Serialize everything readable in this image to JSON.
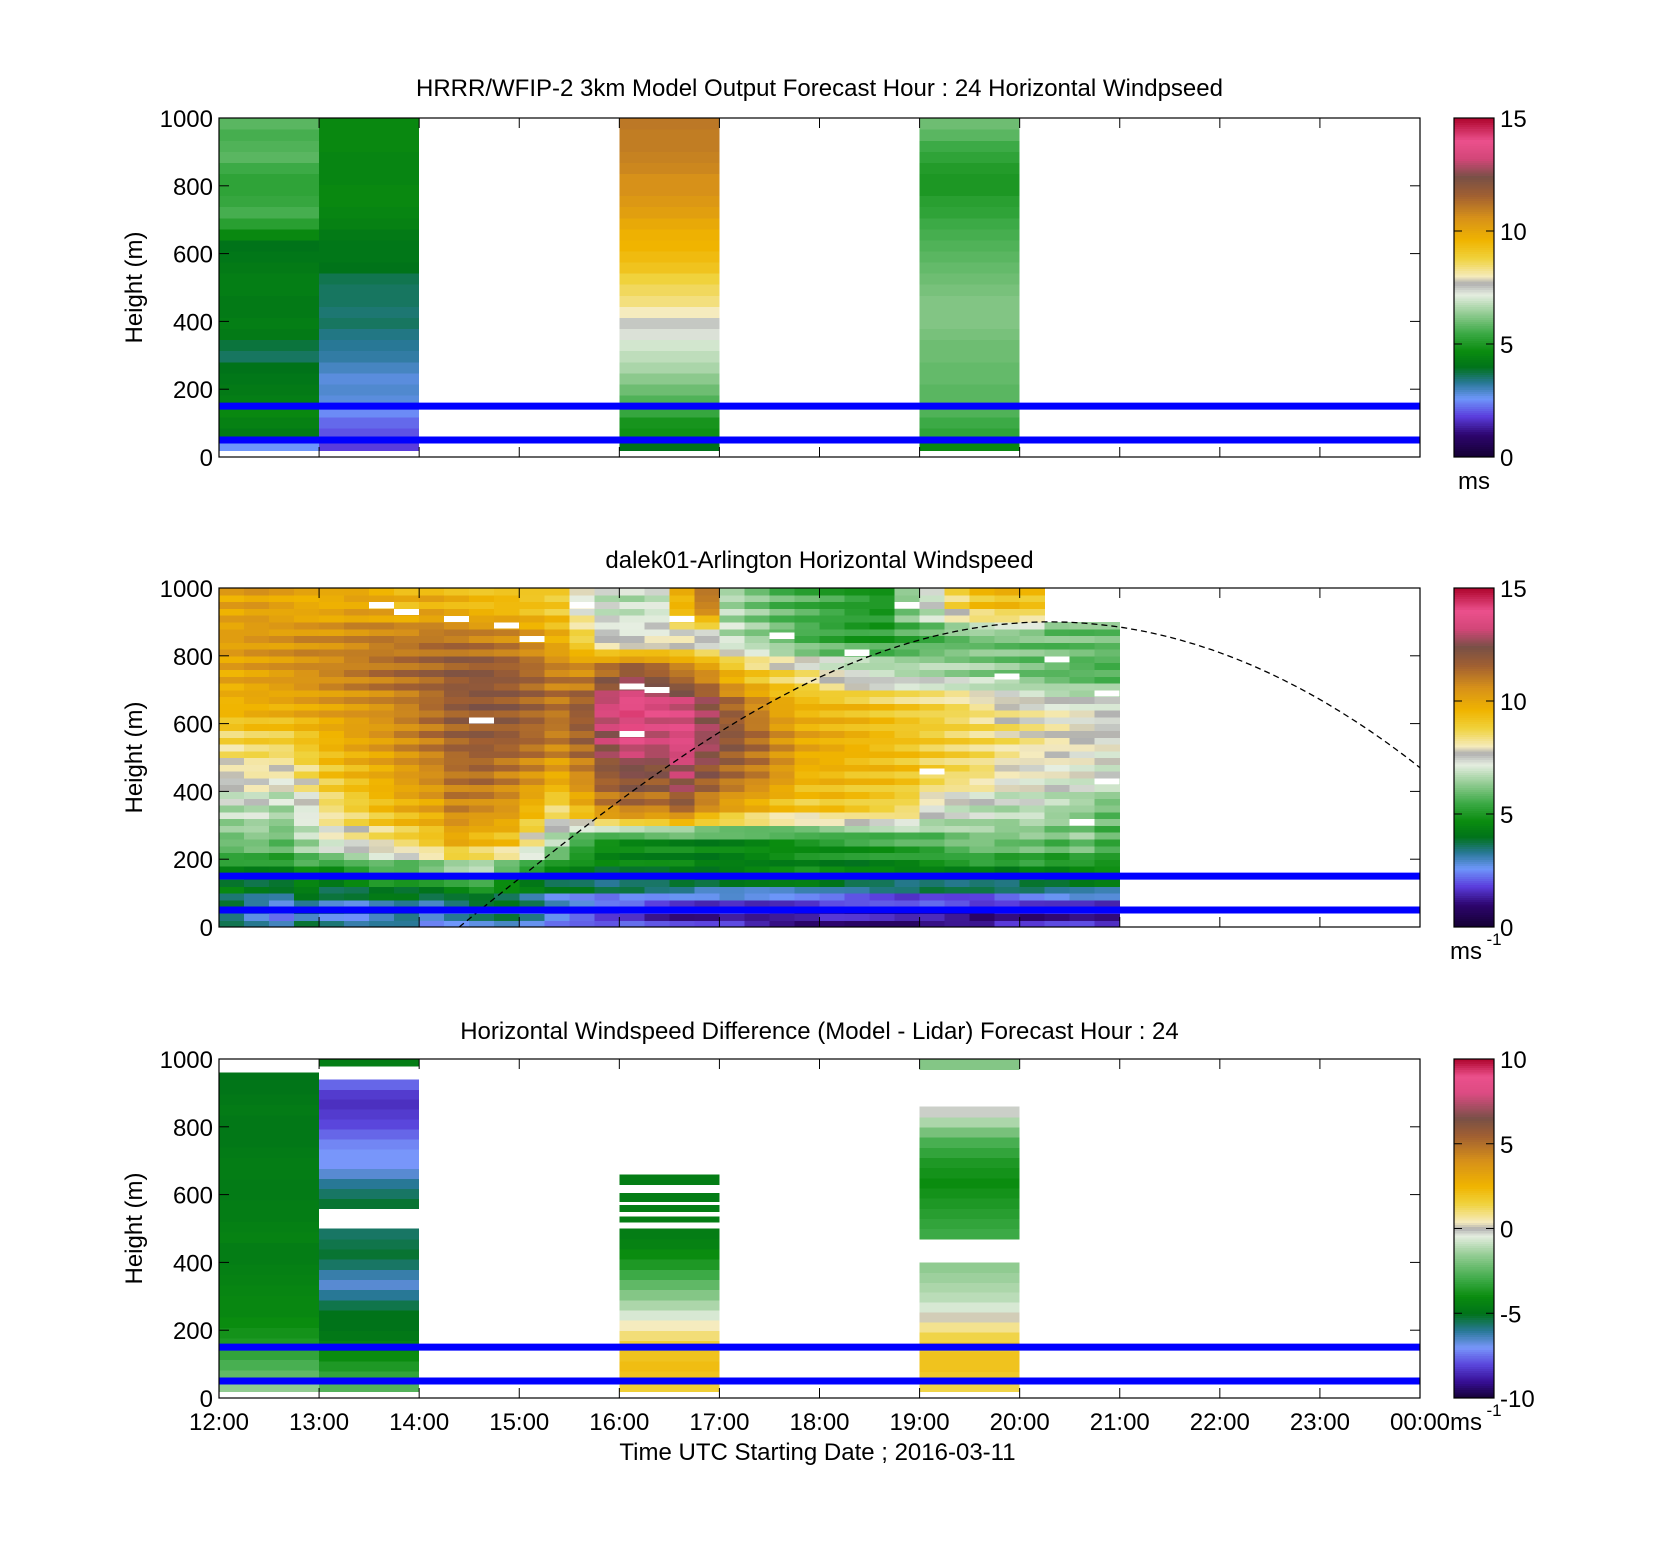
{
  "chart_data": [
    {
      "type": "heatmap",
      "title": "HRRR/WFIP-2 3km Model Output   Forecast Hour : 24 Horizontal Windpseed",
      "ylabel": "Height (m)",
      "xlabel": "",
      "ylim": [
        0,
        1000
      ],
      "yticks": [
        "0",
        "200",
        "400",
        "600",
        "800",
        "1000"
      ],
      "xticks": [
        "12:00",
        "13:00",
        "14:00",
        "15:00",
        "16:00",
        "17:00",
        "18:00",
        "19:00",
        "20:00",
        "21:00",
        "22:00",
        "23:00",
        "00:00"
      ],
      "x_range_hours": [
        12,
        24
      ],
      "show_xtick_labels": false,
      "colorbar": {
        "ticks": [
          "0",
          "5",
          "10",
          "15"
        ],
        "min": 0,
        "max": 15,
        "unit_label": "ms",
        "unit_sup": "",
        "scheme": "speed"
      },
      "hlines_m": [
        150,
        50
      ],
      "columns": [
        {
          "t0": 12,
          "t1": 13,
          "h0": 20,
          "h1": 1000,
          "values_bottom_to_top": [
            2.6,
            4.2,
            4.4,
            4.6,
            4.3,
            4.2,
            4.1,
            4.0,
            3.6,
            3.8,
            4.2,
            4.3,
            4.2,
            4.2,
            4.3,
            4.3,
            4.2,
            4.1,
            4.0,
            4.6,
            5.2,
            5.6,
            5.4,
            5.3,
            5.3,
            5.5,
            5.8,
            5.7,
            5.6,
            5.8
          ]
        },
        {
          "t0": 13,
          "t1": 14,
          "h0": 20,
          "h1": 1000,
          "values_bottom_to_top": [
            1.8,
            2.0,
            2.2,
            2.5,
            2.8,
            2.9,
            2.8,
            3.0,
            3.2,
            3.3,
            3.4,
            3.6,
            3.5,
            3.6,
            3.6,
            3.7,
            4.0,
            4.1,
            4.1,
            4.2,
            4.4,
            4.5,
            4.6,
            4.6,
            4.5,
            4.5,
            4.5,
            4.6,
            4.6,
            4.6
          ]
        },
        {
          "t0": 16,
          "t1": 17,
          "h0": 20,
          "h1": 1000,
          "values_bottom_to_top": [
            4.0,
            4.8,
            4.9,
            5.4,
            5.7,
            6.0,
            6.3,
            6.6,
            6.8,
            7.0,
            7.3,
            7.5,
            8.0,
            8.4,
            8.6,
            8.8,
            9.2,
            9.4,
            9.6,
            9.7,
            9.9,
            10.2,
            10.4,
            10.6,
            10.6,
            10.8,
            10.9,
            11.0,
            11.0,
            11.1
          ]
        },
        {
          "t0": 19,
          "t1": 20,
          "h0": 20,
          "h1": 1000,
          "values_bottom_to_top": [
            4.6,
            5.3,
            5.5,
            5.7,
            5.8,
            5.8,
            5.9,
            5.9,
            6.0,
            6.0,
            6.1,
            6.2,
            6.2,
            6.2,
            6.1,
            6.0,
            5.9,
            5.8,
            5.7,
            5.6,
            5.5,
            5.3,
            5.2,
            5.0,
            5.0,
            5.1,
            5.3,
            5.5,
            5.8,
            6.0
          ]
        }
      ],
      "image_rows": []
    },
    {
      "type": "heatmap",
      "title": "dalek01-Arlington  Horizontal Windspeed",
      "ylabel": "Height (m)",
      "xlabel": "",
      "ylim": [
        0,
        1000
      ],
      "yticks": [
        "0",
        "200",
        "400",
        "600",
        "800",
        "1000"
      ],
      "xticks": [
        "12:00",
        "13:00",
        "14:00",
        "15:00",
        "16:00",
        "17:00",
        "18:00",
        "19:00",
        "20:00",
        "21:00",
        "22:00",
        "23:00",
        "00:00"
      ],
      "x_range_hours": [
        12,
        24
      ],
      "show_xtick_labels": false,
      "colorbar": {
        "ticks": [
          "0",
          "5",
          "10",
          "15"
        ],
        "min": 0,
        "max": 15,
        "unit_label": "ms",
        "unit_sup": "-1",
        "scheme": "speed"
      },
      "hlines_m": [
        150,
        50
      ],
      "elevation_curve": {
        "t_start": 14.4,
        "t_peak": 20.3,
        "t_end": 24,
        "h_peak_m": 900,
        "h_end_m": 470
      },
      "column_width_h": 0.25,
      "columns": [],
      "image_rows": [
        {
          "h0": 0,
          "h1": 100,
          "values": [
            3.5,
            3.0,
            2.6,
            3.4,
            3.1,
            2.9,
            3.2,
            3.4,
            2.7,
            3.0,
            3.2,
            3.4,
            3.0,
            2.4,
            2.1,
            1.8,
            1.9,
            1.6,
            1.5,
            1.5,
            1.7,
            1.4,
            1.3,
            1.2,
            1.4,
            1.3,
            1.2,
            1.1,
            1.3,
            1.2,
            1.0,
            1.4,
            1.3,
            1.5,
            1.6,
            1.4
          ]
        },
        {
          "h0": 100,
          "h1": 200,
          "values": [
            4.5,
            4.3,
            4.4,
            4.8,
            4.2,
            4.6,
            5.0,
            4.7,
            5.1,
            5.5,
            5.9,
            5.0,
            4.6,
            4.3,
            4.4,
            4.1,
            4.3,
            4.2,
            4.4,
            4.0,
            4.1,
            4.2,
            4.3,
            4.5,
            4.2,
            4.0,
            4.2,
            4.1,
            4.4,
            4.3,
            4.5,
            4.2,
            4.6,
            4.3,
            4.4,
            4.5
          ]
        },
        {
          "h0": 200,
          "h1": 300,
          "values": [
            6.0,
            6.2,
            5.9,
            6.6,
            7.4,
            7.8,
            8.2,
            8.6,
            9.0,
            9.8,
            9.4,
            9.2,
            8.0,
            6.6,
            5.4,
            4.8,
            4.6,
            4.7,
            4.6,
            4.5,
            4.6,
            4.7,
            4.8,
            4.9,
            5.0,
            5.2,
            5.3,
            5.5,
            5.6,
            6.0,
            6.2,
            6.0,
            6.1,
            5.8,
            6.2,
            5.6
          ]
        },
        {
          "h0": 300,
          "h1": 400,
          "values": [
            6.8,
            7.0,
            6.6,
            7.3,
            8.4,
            8.8,
            9.3,
            9.7,
            10.0,
            10.8,
            10.6,
            10.4,
            9.6,
            8.6,
            9.6,
            10.8,
            11.2,
            11.0,
            11.6,
            10.6,
            10.0,
            9.6,
            9.2,
            9.0,
            9.2,
            9.0,
            8.8,
            8.6,
            7.6,
            7.2,
            7.0,
            6.8,
            7.0,
            6.6,
            6.4,
            6.0
          ]
        },
        {
          "h0": 400,
          "h1": 500,
          "values": [
            7.8,
            8.0,
            7.8,
            8.4,
            9.1,
            9.5,
            9.8,
            10.3,
            10.7,
            11.2,
            11.4,
            11.0,
            10.6,
            10.0,
            10.8,
            11.8,
            12.3,
            12.1,
            12.8,
            12.0,
            11.4,
            11.0,
            10.4,
            9.6,
            9.6,
            9.4,
            9.4,
            9.2,
            8.8,
            8.6,
            8.4,
            7.8,
            7.6,
            7.5,
            7.4,
            7.2
          ]
        },
        {
          "h0": 500,
          "h1": 600,
          "values": [
            8.6,
            8.8,
            8.8,
            9.2,
            9.6,
            10.0,
            10.3,
            10.7,
            11.1,
            11.6,
            11.8,
            11.7,
            11.4,
            11.0,
            11.6,
            12.8,
            13.5,
            13.2,
            13.6,
            12.8,
            12.0,
            11.4,
            10.6,
            10.0,
            9.8,
            9.6,
            9.4,
            9.2,
            9.0,
            8.8,
            8.6,
            8.4,
            8.2,
            8.0,
            7.8,
            7.6
          ]
        },
        {
          "h0": 600,
          "h1": 700,
          "values": [
            9.6,
            9.8,
            9.8,
            10.0,
            10.2,
            10.4,
            10.6,
            10.9,
            11.3,
            11.8,
            12.0,
            11.9,
            11.6,
            11.2,
            11.8,
            13.4,
            14.0,
            13.6,
            13.4,
            12.6,
            11.6,
            10.8,
            10.0,
            9.6,
            9.5,
            9.4,
            9.2,
            9.0,
            8.8,
            8.6,
            8.3,
            8.0,
            7.8,
            7.6,
            7.5,
            7.4
          ]
        },
        {
          "h0": 700,
          "h1": 800,
          "values": [
            10.0,
            10.2,
            10.4,
            10.6,
            10.8,
            11.0,
            11.2,
            11.4,
            11.6,
            11.9,
            12.0,
            11.8,
            11.5,
            11.0,
            10.8,
            11.6,
            12.2,
            11.8,
            11.2,
            10.6,
            9.6,
            9.0,
            8.6,
            8.2,
            7.6,
            7.2,
            7.0,
            6.8,
            6.8,
            6.6,
            6.4,
            6.2,
            6.0,
            5.8,
            5.7,
            5.6
          ]
        },
        {
          "h0": 800,
          "h1": 900,
          "values": [
            10.2,
            10.4,
            10.4,
            10.6,
            10.6,
            10.8,
            11.0,
            11.0,
            11.2,
            11.2,
            11.0,
            10.8,
            10.4,
            9.8,
            8.8,
            7.6,
            7.4,
            7.6,
            7.6,
            7.2,
            6.8,
            6.4,
            6.0,
            5.6,
            5.4,
            5.2,
            5.2,
            5.4,
            5.6,
            5.8,
            6.0,
            6.0,
            6.0,
            6.0,
            6.0,
            6.0
          ]
        },
        {
          "h0": 900,
          "h1": 1000,
          "values": [
            10.0,
            10.2,
            10.0,
            9.8,
            9.8,
            10.0,
            9.8,
            9.6,
            9.8,
            9.6,
            9.4,
            9.4,
            9.2,
            9.0,
            7.6,
            7.0,
            6.8,
            7.0,
            9.6,
            11.0,
            6.6,
            6.2,
            5.8,
            5.6,
            5.4,
            5.2,
            5.0,
            6.4,
            7.2,
            8.6,
            9.2,
            9.4,
            9.2,
            null,
            null,
            null
          ]
        }
      ],
      "gaps": [
        {
          "t": 13.5,
          "h": 940
        },
        {
          "t": 13.75,
          "h": 920
        },
        {
          "t": 14.25,
          "h": 900
        },
        {
          "t": 14.5,
          "h": 600
        },
        {
          "t": 14.75,
          "h": 880
        },
        {
          "t": 15.0,
          "h": 840
        },
        {
          "t": 15.5,
          "h": 940
        },
        {
          "t": 16.0,
          "h": 560
        },
        {
          "t": 16.0,
          "h": 700
        },
        {
          "t": 16.25,
          "h": 690
        },
        {
          "t": 16.5,
          "h": 900
        },
        {
          "t": 17.5,
          "h": 850
        },
        {
          "t": 18.25,
          "h": 800
        },
        {
          "t": 18.75,
          "h": 940
        },
        {
          "t": 19.0,
          "h": 450
        },
        {
          "t": 19.75,
          "h": 730
        },
        {
          "t": 20.25,
          "h": 780
        },
        {
          "t": 20.5,
          "h": 300
        },
        {
          "t": 20.75,
          "h": 420
        },
        {
          "t": 20.75,
          "h": 680
        }
      ]
    },
    {
      "type": "heatmap",
      "title": "Horizontal Windspeed Difference (Model - Lidar) Forecast Hour : 24",
      "ylabel": "Height (m)",
      "xlabel": "Time UTC  Starting Date ; 2016-03-11",
      "ylim": [
        0,
        1000
      ],
      "yticks": [
        "0",
        "200",
        "400",
        "600",
        "800",
        "1000"
      ],
      "xticks": [
        "12:00",
        "13:00",
        "14:00",
        "15:00",
        "16:00",
        "17:00",
        "18:00",
        "19:00",
        "20:00",
        "21:00",
        "22:00",
        "23:00",
        "00:00"
      ],
      "x_range_hours": [
        12,
        24
      ],
      "show_xtick_labels": true,
      "colorbar": {
        "ticks": [
          "-10",
          "-5",
          "0",
          "5",
          "10"
        ],
        "min": -10,
        "max": 10,
        "unit_label": "ms",
        "unit_sup": "-1",
        "scheme": "diff"
      },
      "hlines_m": [
        150,
        50
      ],
      "columns": [
        {
          "t0": 12,
          "t1": 13,
          "h0": 20,
          "h1": 960,
          "values_bottom_to_top": [
            -1.6,
            -2.4,
            -2.8,
            -3.2,
            -3.6,
            -3.8,
            -4.0,
            -4.2,
            -4.2,
            -4.3,
            -4.4,
            -4.5,
            -4.6,
            -4.6,
            -4.4,
            -4.5,
            -4.6,
            -4.6,
            -4.7,
            -4.7,
            -4.6,
            -4.6,
            -4.7,
            -4.8,
            -4.8,
            -4.8,
            -4.7,
            -4.8,
            -4.9,
            -4.9
          ]
        },
        {
          "t0": 13,
          "t1": 14,
          "h0": 20,
          "h1": 500,
          "values_bottom_to_top": [
            -2.6,
            -3.2,
            -3.6,
            -4.0,
            -4.4,
            -4.8,
            -5.0,
            -5.0,
            -5.4,
            -6.0,
            -6.6,
            -6.2,
            -5.6,
            -5.2,
            -5.4,
            -5.6
          ]
        },
        {
          "t0": 13,
          "t1": 14,
          "h0": 560,
          "h1": 940,
          "values_bottom_to_top": [
            -5.2,
            -5.6,
            -6.0,
            -6.6,
            -7.0,
            -7.0,
            -7.2,
            -7.6,
            -8.0,
            -8.2,
            -8.4,
            -8.2,
            -7.6
          ]
        },
        {
          "t0": 13,
          "t1": 14,
          "h0": 980,
          "h1": 1000,
          "values_bottom_to_top": [
            -4.6
          ]
        },
        {
          "t0": 16,
          "t1": 17,
          "h0": 20,
          "h1": 500,
          "values_bottom_to_top": [
            1.6,
            2.0,
            2.2,
            2.0,
            1.6,
            1.0,
            0.4,
            -0.6,
            -1.2,
            -1.8,
            -2.4,
            -3.0,
            -3.6,
            -4.0,
            -4.4,
            -4.6
          ]
        },
        {
          "t0": 16,
          "t1": 17,
          "h0": 520,
          "h1": 535,
          "values_bottom_to_top": [
            -4.6
          ]
        },
        {
          "t0": 16,
          "t1": 17,
          "h0": 550,
          "h1": 570,
          "values_bottom_to_top": [
            -4.6
          ]
        },
        {
          "t0": 16,
          "t1": 17,
          "h0": 580,
          "h1": 605,
          "values_bottom_to_top": [
            -4.6
          ]
        },
        {
          "t0": 16,
          "t1": 17,
          "h0": 630,
          "h1": 660,
          "values_bottom_to_top": [
            -4.6
          ]
        },
        {
          "t0": 19,
          "t1": 20,
          "h0": 20,
          "h1": 400,
          "values_bottom_to_top": [
            1.4,
            1.8,
            2.0,
            2.0,
            1.8,
            1.4,
            0.8,
            0.2,
            -0.6,
            -1.0,
            -1.2,
            -1.4,
            -1.6
          ]
        },
        {
          "t0": 19,
          "t1": 20,
          "h0": 470,
          "h1": 860,
          "values_bottom_to_top": [
            -3.0,
            -3.2,
            -3.4,
            -3.6,
            -3.8,
            -4.0,
            -3.8,
            -3.6,
            -3.2,
            -2.8,
            -2.0,
            -1.2,
            -0.2
          ]
        },
        {
          "t0": 19,
          "t1": 20,
          "h0": 970,
          "h1": 1000,
          "values_bottom_to_top": [
            -1.8
          ]
        }
      ],
      "image_rows": []
    }
  ]
}
